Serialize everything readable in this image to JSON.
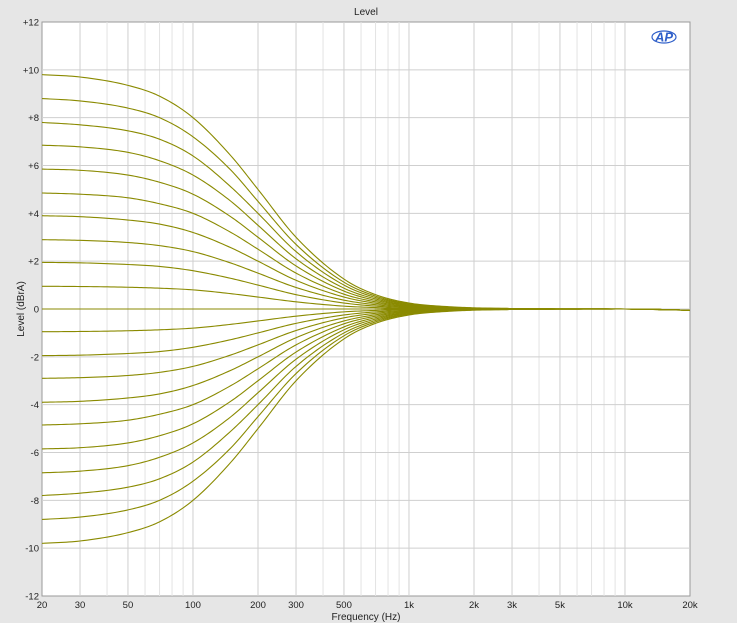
{
  "chart_data": {
    "type": "line",
    "title": "Level",
    "xlabel": "Frequency (Hz)",
    "ylabel": "Level (dBrA)",
    "x_scale": "log",
    "xlim": [
      20,
      20000
    ],
    "ylim": [
      -12,
      12
    ],
    "grid": true,
    "x_tick_values": [
      20,
      30,
      50,
      100,
      200,
      300,
      500,
      1000,
      2000,
      3000,
      5000,
      10000,
      20000
    ],
    "x_tick_labels": [
      "20",
      "30",
      "50",
      "100",
      "200",
      "300",
      "500",
      "1k",
      "2k",
      "3k",
      "5k",
      "10k",
      "20k"
    ],
    "y_tick_values": [
      12,
      10,
      8,
      6,
      4,
      2,
      0,
      -2,
      -4,
      -6,
      -8,
      -10,
      -12
    ],
    "y_tick_labels": [
      "+12",
      "+10",
      "+8",
      "+6",
      "+4",
      "+2",
      "0",
      "-2",
      "-4",
      "-6",
      "-8",
      "-10",
      "-12"
    ],
    "line_color": "#8a8a00",
    "x": [
      20,
      30,
      50,
      70,
      100,
      150,
      200,
      300,
      500,
      700,
      1000,
      1500,
      2000,
      3000,
      5000,
      10000,
      20000
    ],
    "series": [
      {
        "values": [
          9.8,
          9.7,
          9.35,
          8.9,
          8.0,
          6.4,
          5.0,
          3.0,
          1.25,
          0.6,
          0.25,
          0.1,
          0.05,
          0.02,
          0.01,
          0.0,
          -0.05
        ]
      },
      {
        "values": [
          8.8,
          8.7,
          8.4,
          8.0,
          7.2,
          5.8,
          4.5,
          2.7,
          1.12,
          0.54,
          0.22,
          0.09,
          0.04,
          0.02,
          0.01,
          0.0,
          -0.05
        ]
      },
      {
        "values": [
          7.8,
          7.7,
          7.45,
          7.1,
          6.4,
          5.1,
          4.0,
          2.4,
          1.0,
          0.48,
          0.2,
          0.08,
          0.04,
          0.02,
          0.01,
          0.0,
          -0.05
        ]
      },
      {
        "values": [
          6.85,
          6.78,
          6.55,
          6.2,
          5.6,
          4.5,
          3.5,
          2.1,
          0.87,
          0.42,
          0.17,
          0.07,
          0.03,
          0.01,
          0.0,
          0.0,
          -0.05
        ]
      },
      {
        "values": [
          5.85,
          5.8,
          5.6,
          5.3,
          4.8,
          3.85,
          3.0,
          1.8,
          0.75,
          0.36,
          0.15,
          0.06,
          0.03,
          0.01,
          0.0,
          0.0,
          -0.05
        ]
      },
      {
        "values": [
          4.85,
          4.8,
          4.65,
          4.4,
          4.0,
          3.2,
          2.5,
          1.5,
          0.62,
          0.3,
          0.12,
          0.05,
          0.02,
          0.01,
          0.0,
          0.0,
          -0.05
        ]
      },
      {
        "values": [
          3.9,
          3.86,
          3.72,
          3.55,
          3.2,
          2.56,
          2.0,
          1.2,
          0.5,
          0.24,
          0.1,
          0.04,
          0.02,
          0.01,
          0.0,
          0.0,
          -0.05
        ]
      },
      {
        "values": [
          2.9,
          2.87,
          2.78,
          2.65,
          2.4,
          1.92,
          1.5,
          0.9,
          0.37,
          0.18,
          0.07,
          0.03,
          0.01,
          0.0,
          0.0,
          0.0,
          -0.05
        ]
      },
      {
        "values": [
          1.95,
          1.93,
          1.86,
          1.78,
          1.6,
          1.28,
          1.0,
          0.6,
          0.25,
          0.12,
          0.05,
          0.02,
          0.01,
          0.0,
          0.0,
          0.0,
          -0.05
        ]
      },
      {
        "values": [
          0.95,
          0.94,
          0.91,
          0.87,
          0.8,
          0.64,
          0.5,
          0.3,
          0.12,
          0.06,
          0.02,
          0.01,
          0.0,
          0.0,
          0.0,
          0.0,
          -0.05
        ]
      },
      {
        "values": [
          0.0,
          0.0,
          0.0,
          0.0,
          0.0,
          0.0,
          0.0,
          0.0,
          0.0,
          0.0,
          0.0,
          0.0,
          0.0,
          0.0,
          0.0,
          0.0,
          -0.05
        ]
      },
      {
        "values": [
          -0.95,
          -0.94,
          -0.91,
          -0.87,
          -0.8,
          -0.64,
          -0.5,
          -0.3,
          -0.12,
          -0.06,
          -0.02,
          -0.01,
          0.0,
          0.0,
          0.0,
          0.0,
          -0.05
        ]
      },
      {
        "values": [
          -1.95,
          -1.93,
          -1.86,
          -1.78,
          -1.6,
          -1.28,
          -1.0,
          -0.6,
          -0.25,
          -0.12,
          -0.05,
          -0.02,
          -0.01,
          0.0,
          0.0,
          0.0,
          -0.05
        ]
      },
      {
        "values": [
          -2.9,
          -2.87,
          -2.78,
          -2.65,
          -2.4,
          -1.92,
          -1.5,
          -0.9,
          -0.37,
          -0.18,
          -0.07,
          -0.03,
          -0.01,
          0.0,
          0.0,
          0.0,
          -0.05
        ]
      },
      {
        "values": [
          -3.9,
          -3.86,
          -3.72,
          -3.55,
          -3.2,
          -2.56,
          -2.0,
          -1.2,
          -0.5,
          -0.24,
          -0.1,
          -0.04,
          -0.02,
          -0.01,
          0.0,
          0.0,
          -0.05
        ]
      },
      {
        "values": [
          -4.85,
          -4.8,
          -4.65,
          -4.4,
          -4.0,
          -3.2,
          -2.5,
          -1.5,
          -0.62,
          -0.3,
          -0.12,
          -0.05,
          -0.02,
          -0.01,
          0.0,
          0.0,
          -0.05
        ]
      },
      {
        "values": [
          -5.85,
          -5.8,
          -5.6,
          -5.3,
          -4.8,
          -3.85,
          -3.0,
          -1.8,
          -0.75,
          -0.36,
          -0.15,
          -0.06,
          -0.03,
          -0.01,
          0.0,
          0.0,
          -0.05
        ]
      },
      {
        "values": [
          -6.85,
          -6.78,
          -6.55,
          -6.2,
          -5.6,
          -4.5,
          -3.5,
          -2.1,
          -0.87,
          -0.42,
          -0.17,
          -0.07,
          -0.03,
          -0.01,
          0.0,
          0.0,
          -0.05
        ]
      },
      {
        "values": [
          -7.8,
          -7.7,
          -7.45,
          -7.1,
          -6.4,
          -5.1,
          -4.0,
          -2.4,
          -1.0,
          -0.48,
          -0.2,
          -0.08,
          -0.04,
          -0.02,
          -0.01,
          0.0,
          -0.05
        ]
      },
      {
        "values": [
          -8.8,
          -8.7,
          -8.4,
          -8.0,
          -7.2,
          -5.8,
          -4.5,
          -2.7,
          -1.12,
          -0.54,
          -0.22,
          -0.09,
          -0.04,
          -0.02,
          -0.01,
          0.0,
          -0.05
        ]
      },
      {
        "values": [
          -9.8,
          -9.7,
          -9.35,
          -8.9,
          -8.0,
          -6.4,
          -5.0,
          -3.0,
          -1.25,
          -0.6,
          -0.25,
          -0.1,
          -0.05,
          -0.02,
          -0.01,
          0.0,
          -0.05
        ]
      }
    ]
  },
  "logo": {
    "text": "AP",
    "color": "#2f5fc9"
  }
}
